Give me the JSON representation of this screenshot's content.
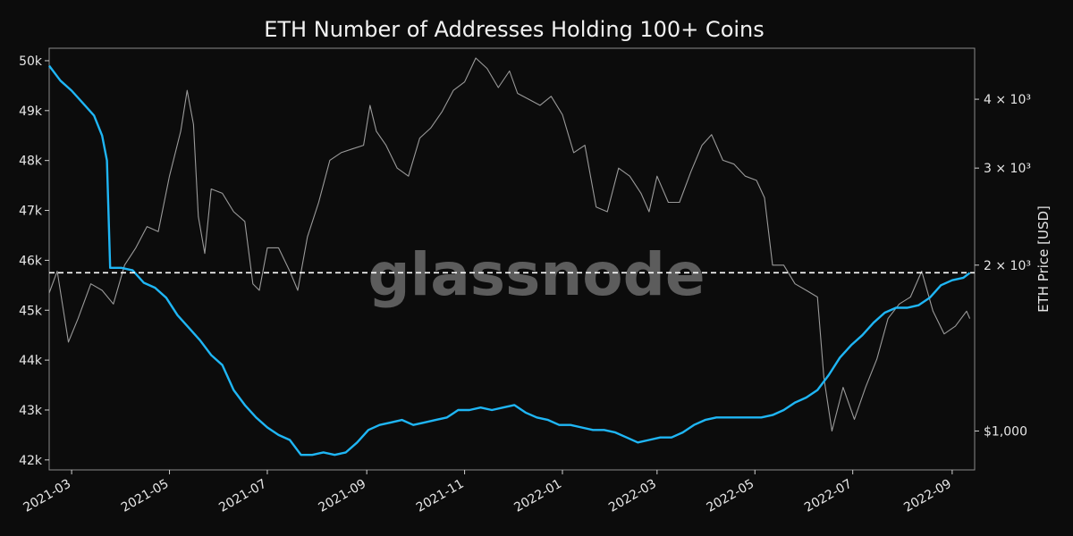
{
  "chart_data": {
    "type": "line",
    "title": "ETH Number of Addresses Holding 100+ Coins",
    "watermark": "glassnode",
    "xlabel": "",
    "ylabel_left": "",
    "ylabel_right": "ETH Price [USD]",
    "x_range": [
      "2021-02-15",
      "2022-09-15"
    ],
    "x_ticks": [
      "2021-03",
      "2021-05",
      "2021-07",
      "2021-09",
      "2021-11",
      "2022-01",
      "2022-03",
      "2022-05",
      "2022-07",
      "2022-09"
    ],
    "y_left_range": [
      41800,
      50250
    ],
    "y_left_ticks": [
      {
        "value": 42000,
        "label": "42k"
      },
      {
        "value": 43000,
        "label": "43k"
      },
      {
        "value": 44000,
        "label": "44k"
      },
      {
        "value": 45000,
        "label": "45k"
      },
      {
        "value": 46000,
        "label": "46k"
      },
      {
        "value": 47000,
        "label": "47k"
      },
      {
        "value": 48000,
        "label": "48k"
      },
      {
        "value": 49000,
        "label": "49k"
      },
      {
        "value": 50000,
        "label": "50k"
      }
    ],
    "y_right_scale": "log",
    "y_right_range": [
      850,
      4950
    ],
    "y_right_ticks": [
      {
        "value": 1000,
        "label": "$1,000"
      },
      {
        "value": 2000,
        "label": "2 × 10³"
      },
      {
        "value": 3000,
        "label": "3 × 10³"
      },
      {
        "value": 4000,
        "label": "4 × 10³"
      }
    ],
    "reference_line": {
      "value": 45750,
      "axis": "left",
      "style": "dashed"
    },
    "grid": false,
    "colors": {
      "background": "#0c0c0c",
      "addresses": "#1fb6f5",
      "price": "#9a9a9a",
      "reference": "#ffffff"
    },
    "series": [
      {
        "axis": "left",
        "values": [
          [
            "2021-02-15",
            49900
          ],
          [
            "2021-02-22",
            49600
          ],
          [
            "2021-03-01",
            49400
          ],
          [
            "2021-03-08",
            49150
          ],
          [
            "2021-03-15",
            48900
          ],
          [
            "2021-03-20",
            48500
          ],
          [
            "2021-03-23",
            48000
          ],
          [
            "2021-03-25",
            45850
          ],
          [
            "2021-04-01",
            45850
          ],
          [
            "2021-04-08",
            45800
          ],
          [
            "2021-04-15",
            45550
          ],
          [
            "2021-04-22",
            45450
          ],
          [
            "2021-04-29",
            45250
          ],
          [
            "2021-05-06",
            44900
          ],
          [
            "2021-05-13",
            44650
          ],
          [
            "2021-05-20",
            44400
          ],
          [
            "2021-05-27",
            44100
          ],
          [
            "2021-06-03",
            43900
          ],
          [
            "2021-06-10",
            43400
          ],
          [
            "2021-06-17",
            43100
          ],
          [
            "2021-06-24",
            42850
          ],
          [
            "2021-07-01",
            42650
          ],
          [
            "2021-07-08",
            42500
          ],
          [
            "2021-07-15",
            42400
          ],
          [
            "2021-07-22",
            42100
          ],
          [
            "2021-07-29",
            42100
          ],
          [
            "2021-08-05",
            42150
          ],
          [
            "2021-08-12",
            42100
          ],
          [
            "2021-08-19",
            42150
          ],
          [
            "2021-08-26",
            42350
          ],
          [
            "2021-09-02",
            42600
          ],
          [
            "2021-09-09",
            42700
          ],
          [
            "2021-09-16",
            42750
          ],
          [
            "2021-09-23",
            42800
          ],
          [
            "2021-09-30",
            42700
          ],
          [
            "2021-10-07",
            42750
          ],
          [
            "2021-10-14",
            42800
          ],
          [
            "2021-10-21",
            42850
          ],
          [
            "2021-10-28",
            43000
          ],
          [
            "2021-11-04",
            43000
          ],
          [
            "2021-11-11",
            43050
          ],
          [
            "2021-11-18",
            43000
          ],
          [
            "2021-11-25",
            43050
          ],
          [
            "2021-12-02",
            43100
          ],
          [
            "2021-12-09",
            42950
          ],
          [
            "2021-12-16",
            42850
          ],
          [
            "2021-12-23",
            42800
          ],
          [
            "2021-12-30",
            42700
          ],
          [
            "2022-01-06",
            42700
          ],
          [
            "2022-01-13",
            42650
          ],
          [
            "2022-01-20",
            42600
          ],
          [
            "2022-01-27",
            42600
          ],
          [
            "2022-02-03",
            42550
          ],
          [
            "2022-02-10",
            42450
          ],
          [
            "2022-02-17",
            42350
          ],
          [
            "2022-02-24",
            42400
          ],
          [
            "2022-03-03",
            42450
          ],
          [
            "2022-03-10",
            42450
          ],
          [
            "2022-03-17",
            42550
          ],
          [
            "2022-03-24",
            42700
          ],
          [
            "2022-03-31",
            42800
          ],
          [
            "2022-04-07",
            42850
          ],
          [
            "2022-04-14",
            42850
          ],
          [
            "2022-04-21",
            42850
          ],
          [
            "2022-04-28",
            42850
          ],
          [
            "2022-05-05",
            42850
          ],
          [
            "2022-05-12",
            42900
          ],
          [
            "2022-05-19",
            43000
          ],
          [
            "2022-05-26",
            43150
          ],
          [
            "2022-06-02",
            43250
          ],
          [
            "2022-06-09",
            43400
          ],
          [
            "2022-06-16",
            43700
          ],
          [
            "2022-06-23",
            44050
          ],
          [
            "2022-06-30",
            44300
          ],
          [
            "2022-07-07",
            44500
          ],
          [
            "2022-07-14",
            44750
          ],
          [
            "2022-07-21",
            44950
          ],
          [
            "2022-07-28",
            45050
          ],
          [
            "2022-08-04",
            45050
          ],
          [
            "2022-08-11",
            45100
          ],
          [
            "2022-08-18",
            45250
          ],
          [
            "2022-08-25",
            45500
          ],
          [
            "2022-09-01",
            45600
          ],
          [
            "2022-09-08",
            45650
          ],
          [
            "2022-09-12",
            45750
          ]
        ]
      },
      {
        "axis": "right",
        "values": [
          [
            "2021-02-15",
            1780
          ],
          [
            "2021-02-20",
            1950
          ],
          [
            "2021-02-27",
            1450
          ],
          [
            "2021-03-05",
            1600
          ],
          [
            "2021-03-13",
            1850
          ],
          [
            "2021-03-20",
            1800
          ],
          [
            "2021-03-27",
            1700
          ],
          [
            "2021-04-03",
            2000
          ],
          [
            "2021-04-10",
            2150
          ],
          [
            "2021-04-17",
            2350
          ],
          [
            "2021-04-24",
            2300
          ],
          [
            "2021-05-01",
            2900
          ],
          [
            "2021-05-08",
            3500
          ],
          [
            "2021-05-12",
            4150
          ],
          [
            "2021-05-16",
            3600
          ],
          [
            "2021-05-19",
            2450
          ],
          [
            "2021-05-23",
            2100
          ],
          [
            "2021-05-27",
            2750
          ],
          [
            "2021-06-03",
            2700
          ],
          [
            "2021-06-10",
            2500
          ],
          [
            "2021-06-17",
            2400
          ],
          [
            "2021-06-22",
            1850
          ],
          [
            "2021-06-26",
            1800
          ],
          [
            "2021-07-01",
            2150
          ],
          [
            "2021-07-08",
            2150
          ],
          [
            "2021-07-15",
            1950
          ],
          [
            "2021-07-20",
            1800
          ],
          [
            "2021-07-26",
            2250
          ],
          [
            "2021-08-02",
            2600
          ],
          [
            "2021-08-09",
            3100
          ],
          [
            "2021-08-16",
            3200
          ],
          [
            "2021-08-23",
            3250
          ],
          [
            "2021-08-30",
            3300
          ],
          [
            "2021-09-03",
            3900
          ],
          [
            "2021-09-07",
            3500
          ],
          [
            "2021-09-13",
            3300
          ],
          [
            "2021-09-20",
            3000
          ],
          [
            "2021-09-27",
            2900
          ],
          [
            "2021-10-04",
            3400
          ],
          [
            "2021-10-11",
            3550
          ],
          [
            "2021-10-18",
            3800
          ],
          [
            "2021-10-25",
            4150
          ],
          [
            "2021-11-01",
            4300
          ],
          [
            "2021-11-08",
            4750
          ],
          [
            "2021-11-15",
            4550
          ],
          [
            "2021-11-22",
            4200
          ],
          [
            "2021-11-29",
            4500
          ],
          [
            "2021-12-04",
            4100
          ],
          [
            "2021-12-11",
            4000
          ],
          [
            "2021-12-18",
            3900
          ],
          [
            "2021-12-25",
            4050
          ],
          [
            "2022-01-01",
            3750
          ],
          [
            "2022-01-08",
            3200
          ],
          [
            "2022-01-15",
            3300
          ],
          [
            "2022-01-22",
            2550
          ],
          [
            "2022-01-29",
            2500
          ],
          [
            "2022-02-05",
            3000
          ],
          [
            "2022-02-12",
            2900
          ],
          [
            "2022-02-19",
            2700
          ],
          [
            "2022-02-24",
            2500
          ],
          [
            "2022-03-01",
            2900
          ],
          [
            "2022-03-08",
            2600
          ],
          [
            "2022-03-15",
            2600
          ],
          [
            "2022-03-22",
            2950
          ],
          [
            "2022-03-29",
            3300
          ],
          [
            "2022-04-04",
            3450
          ],
          [
            "2022-04-11",
            3100
          ],
          [
            "2022-04-18",
            3050
          ],
          [
            "2022-04-25",
            2900
          ],
          [
            "2022-05-02",
            2850
          ],
          [
            "2022-05-07",
            2650
          ],
          [
            "2022-05-12",
            2000
          ],
          [
            "2022-05-19",
            2000
          ],
          [
            "2022-05-26",
            1850
          ],
          [
            "2022-06-02",
            1800
          ],
          [
            "2022-06-09",
            1750
          ],
          [
            "2022-06-13",
            1250
          ],
          [
            "2022-06-18",
            1000
          ],
          [
            "2022-06-25",
            1200
          ],
          [
            "2022-07-02",
            1050
          ],
          [
            "2022-07-09",
            1200
          ],
          [
            "2022-07-16",
            1350
          ],
          [
            "2022-07-23",
            1600
          ],
          [
            "2022-07-30",
            1700
          ],
          [
            "2022-08-06",
            1750
          ],
          [
            "2022-08-13",
            1950
          ],
          [
            "2022-08-20",
            1650
          ],
          [
            "2022-08-27",
            1500
          ],
          [
            "2022-09-03",
            1550
          ],
          [
            "2022-09-10",
            1650
          ],
          [
            "2022-09-12",
            1600
          ]
        ]
      }
    ]
  }
}
